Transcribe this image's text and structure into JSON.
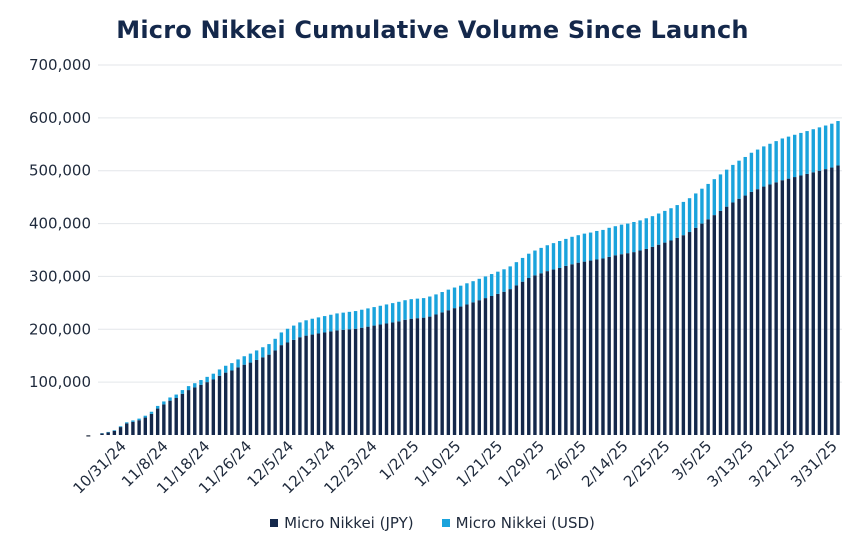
{
  "chart_data": {
    "type": "bar",
    "stacked": true,
    "title": "Micro Nikkei Cumulative Volume Since Launch",
    "xlabel": "",
    "ylabel": "",
    "ylim": [
      0,
      700000
    ],
    "y_ticks": [
      "-",
      "100,000",
      "200,000",
      "300,000",
      "400,000",
      "500,000",
      "600,000",
      "700,000"
    ],
    "x_tick_labels": [
      "10/31/24",
      "11/8/24",
      "11/18/24",
      "11/26/24",
      "12/5/24",
      "12/13/24",
      "12/23/24",
      "1/2/25",
      "1/10/25",
      "1/21/25",
      "1/29/25",
      "2/6/25",
      "2/14/25",
      "2/25/25",
      "3/5/25",
      "3/13/25",
      "3/21/25",
      "3/31/25"
    ],
    "grid": true,
    "legend": "bottom",
    "colors": {
      "jpy": "#14284b",
      "usd": "#1aa3dc",
      "grid": "#e3e6ea"
    },
    "series": [
      {
        "name": "Micro Nikkei (JPY)",
        "values": [
          3000,
          5000,
          8000,
          15000,
          22000,
          25000,
          28000,
          33000,
          40000,
          50000,
          58000,
          65000,
          70000,
          78000,
          85000,
          90000,
          95000,
          100000,
          105000,
          112000,
          118000,
          122000,
          128000,
          133000,
          137000,
          142000,
          147000,
          152000,
          160000,
          170000,
          175000,
          180000,
          185000,
          188000,
          190000,
          192000,
          194000,
          196000,
          198000,
          199000,
          200000,
          201000,
          203000,
          205000,
          207000,
          209000,
          211000,
          213000,
          215000,
          218000,
          220000,
          221000,
          222000,
          224000,
          228000,
          232000,
          236000,
          240000,
          243000,
          247000,
          251000,
          255000,
          259000,
          263000,
          267000,
          271000,
          276000,
          283000,
          290000,
          297000,
          302000,
          306000,
          310000,
          313000,
          316000,
          320000,
          323000,
          326000,
          328000,
          330000,
          332000,
          334000,
          337000,
          340000,
          342000,
          344000,
          346000,
          349000,
          352000,
          356000,
          360000,
          364000,
          368000,
          373000,
          378000,
          384000,
          392000,
          400000,
          408000,
          416000,
          424000,
          432000,
          440000,
          447000,
          453000,
          460000,
          465000,
          470000,
          474000,
          478000,
          482000,
          485000,
          488000,
          491000,
          494000,
          497000,
          500000,
          503000,
          506000,
          510000
        ]
      },
      {
        "name": "Micro Nikkei (USD)",
        "values": [
          500,
          800,
          1000,
          1500,
          2000,
          2500,
          3000,
          3500,
          4000,
          5000,
          5500,
          6000,
          6500,
          7000,
          7500,
          8000,
          9000,
          10000,
          11000,
          12000,
          13000,
          14000,
          15000,
          16000,
          17000,
          18000,
          19000,
          20000,
          22000,
          24000,
          26000,
          27000,
          28000,
          29000,
          30000,
          30500,
          31000,
          31500,
          32000,
          32500,
          33000,
          33500,
          34000,
          34500,
          35000,
          35500,
          36000,
          36500,
          37000,
          37000,
          37000,
          37000,
          37000,
          38000,
          38000,
          38500,
          39000,
          39000,
          39500,
          40000,
          40000,
          40500,
          41000,
          41500,
          42000,
          42500,
          43000,
          44000,
          45000,
          46000,
          47000,
          48000,
          49000,
          50000,
          51000,
          51000,
          52000,
          52000,
          53000,
          53000,
          54000,
          54000,
          55000,
          55000,
          56000,
          56000,
          57000,
          57000,
          58000,
          58000,
          59000,
          60000,
          61000,
          62000,
          63000,
          64000,
          65000,
          66000,
          67000,
          68000,
          69000,
          70000,
          71000,
          72000,
          73000,
          74000,
          75000,
          76000,
          77000,
          78000,
          79000,
          79500,
          80000,
          80500,
          81000,
          81500,
          82000,
          82500,
          83000,
          84000
        ]
      }
    ]
  },
  "legend_items": [
    {
      "label": "Micro Nikkei (JPY)",
      "color": "#14284b"
    },
    {
      "label": "Micro Nikkei (USD)",
      "color": "#1aa3dc"
    }
  ]
}
